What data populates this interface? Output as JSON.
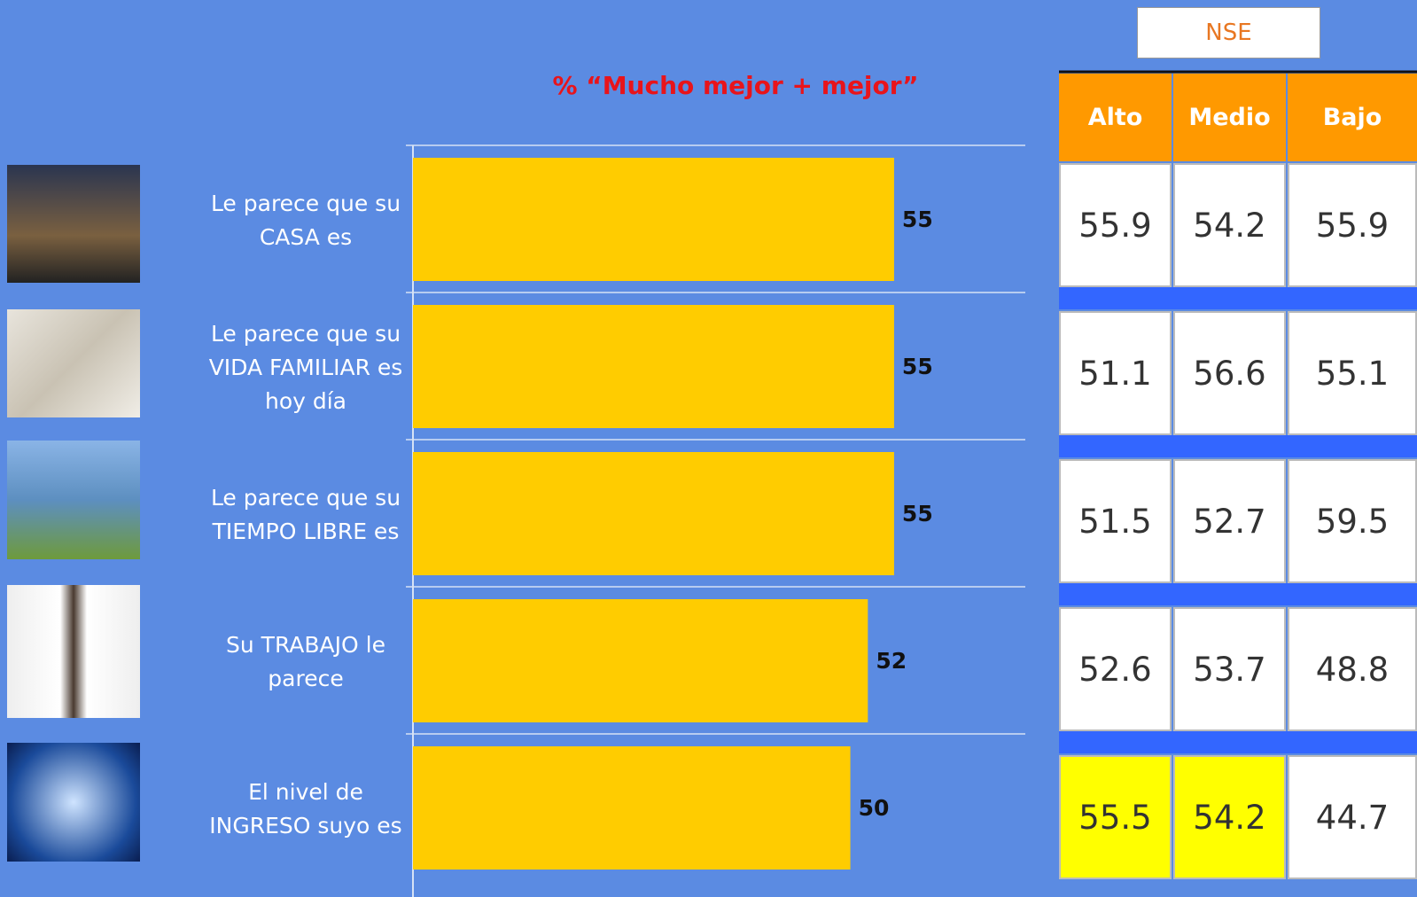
{
  "chart_data": {
    "type": "bar",
    "orientation": "horizontal",
    "title": "% “Mucho mejor + mejor”",
    "categories": [
      "Le parece que su CASA es",
      "Le parece que su VIDA FAMILIAR es hoy día",
      "Le parece que su TIEMPO LIBRE es",
      "Su TRABAJO le parece",
      "El nivel de INGRESO suyo es"
    ],
    "values": [
      55,
      55,
      55,
      52,
      50
    ],
    "color": "#ffcc00",
    "xlim": [
      0,
      70
    ]
  },
  "table": {
    "title": "NSE",
    "columns": [
      "Alto",
      "Medio",
      "Bajo"
    ],
    "rows": [
      [
        55.9,
        54.2,
        55.9
      ],
      [
        51.1,
        56.6,
        55.1
      ],
      [
        51.5,
        52.7,
        59.5
      ],
      [
        52.6,
        53.7,
        48.8
      ],
      [
        55.5,
        54.2,
        44.7
      ]
    ],
    "cell_fills": [
      [
        "#ffffff",
        "#ffffff",
        "#ffffff"
      ],
      [
        "#ffffff",
        "#ffffff",
        "#ffffff"
      ],
      [
        "#ffffff",
        "#ffffff",
        "#ffffff"
      ],
      [
        "#ffffff",
        "#ffffff",
        "#ffffff"
      ],
      [
        "#ffff00",
        "#ffff00",
        "#ffffff"
      ]
    ]
  }
}
